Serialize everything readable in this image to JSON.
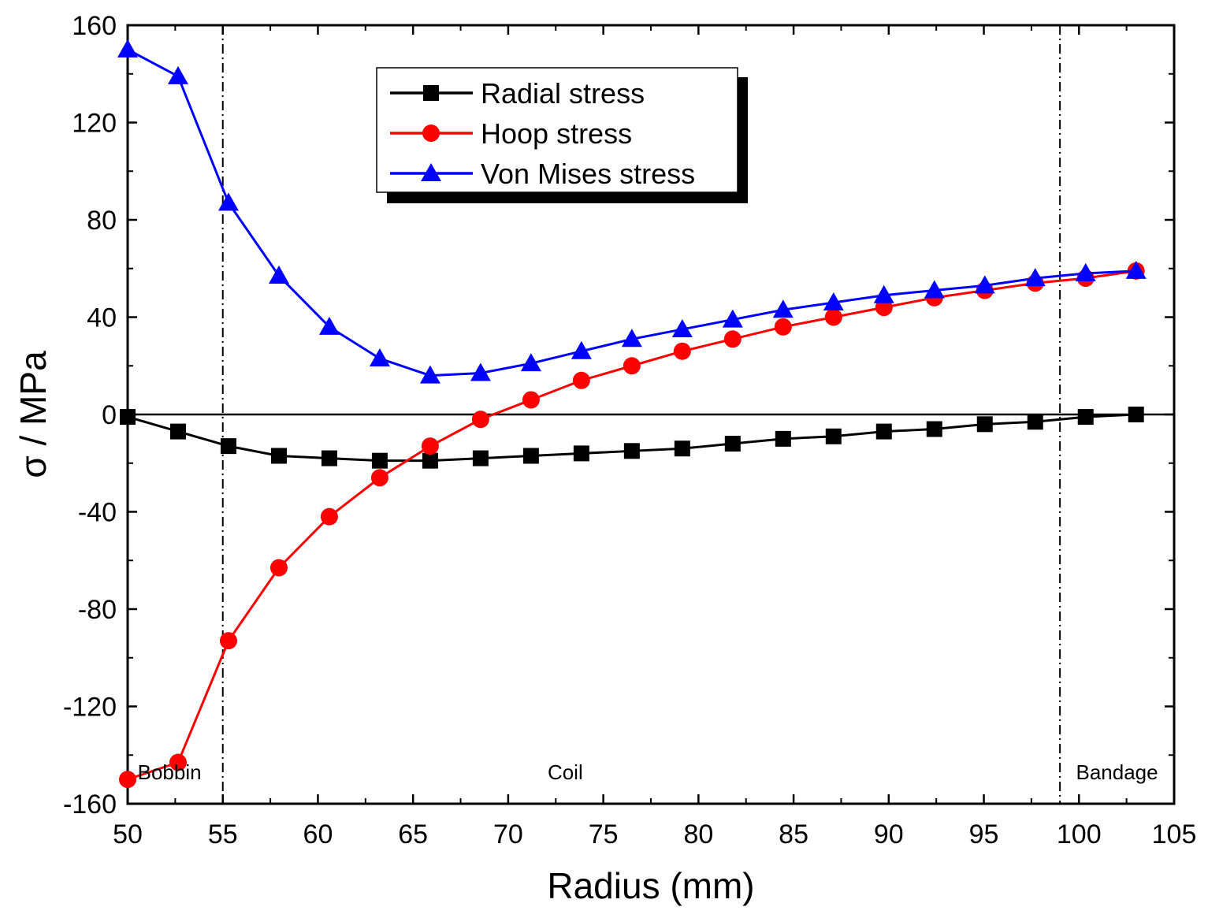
{
  "chart_data": {
    "type": "line",
    "title": "",
    "xlabel": "Radius (mm)",
    "ylabel": "σ / MPa",
    "xlim": [
      50,
      105
    ],
    "ylim": [
      -160,
      160
    ],
    "xticks": [
      50,
      55,
      60,
      65,
      70,
      75,
      80,
      85,
      90,
      95,
      100,
      105
    ],
    "yticks": [
      -160,
      -120,
      -80,
      -40,
      0,
      40,
      80,
      120,
      160
    ],
    "x": [
      50,
      52.65,
      55.3,
      57.95,
      60.6,
      63.25,
      65.9,
      68.55,
      71.2,
      73.85,
      76.5,
      79.15,
      81.8,
      84.45,
      87.1,
      89.75,
      92.4,
      95.05,
      97.7,
      100.35,
      103.0
    ],
    "series": [
      {
        "name": "Radial stress",
        "color": "#000000",
        "marker": "square",
        "values": [
          -1,
          -7,
          -13,
          -17,
          -18,
          -19,
          -19,
          -18,
          -17,
          -16,
          -15,
          -14,
          -12,
          -10,
          -9,
          -7,
          -6,
          -4,
          -3,
          -1,
          0
        ]
      },
      {
        "name": "Hoop stress",
        "color": "#ff0000",
        "marker": "circle",
        "values": [
          -150,
          -143,
          -93,
          -63,
          -42,
          -26,
          -13,
          -2,
          6,
          14,
          20,
          26,
          31,
          36,
          40,
          44,
          48,
          51,
          54,
          56,
          59
        ]
      },
      {
        "name": "Von Mises stress",
        "color": "#0000ff",
        "marker": "triangle",
        "values": [
          150,
          139,
          87,
          57,
          36,
          23,
          16,
          17,
          21,
          26,
          31,
          35,
          39,
          43,
          46,
          49,
          51,
          53,
          56,
          58,
          59
        ]
      }
    ],
    "vlines": [
      55,
      99
    ],
    "hline": 0,
    "regions": [
      {
        "label": "Bobbin",
        "x": 52.2,
        "y": -147
      },
      {
        "label": "Coil",
        "x": 73.0,
        "y": -147
      },
      {
        "label": "Bandage",
        "x": 102.0,
        "y": -147
      }
    ],
    "legend_position": "top-center"
  }
}
